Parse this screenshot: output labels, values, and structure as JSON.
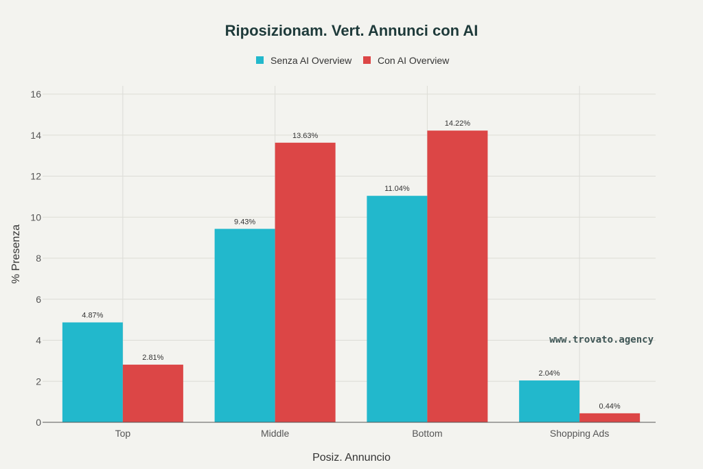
{
  "colors": {
    "background": "#f3f3ef",
    "senza": "#22b8cc",
    "con": "#dc4646",
    "title": "#1e3a3a"
  },
  "watermark": "www.trovato.agency",
  "chart_data": {
    "type": "bar",
    "title": "Riposizionam. Vert. Annunci con AI",
    "xlabel": "Posiz. Annuncio",
    "ylabel": "% Presenza",
    "categories": [
      "Top",
      "Middle",
      "Bottom",
      "Shopping Ads"
    ],
    "series": [
      {
        "name": "Senza AI Overview",
        "color": "#22b8cc",
        "values": [
          4.87,
          9.43,
          11.04,
          2.04
        ],
        "labels": [
          "4.87%",
          "9.43%",
          "11.04%",
          "2.04%"
        ]
      },
      {
        "name": "Con AI Overview",
        "color": "#dc4646",
        "values": [
          2.81,
          13.63,
          14.22,
          0.44
        ],
        "labels": [
          "2.81%",
          "13.63%",
          "14.22%",
          "0.44%"
        ]
      }
    ],
    "ylim": [
      0,
      16
    ],
    "yticks": [
      0,
      2,
      4,
      6,
      8,
      10,
      12,
      14,
      16
    ],
    "ytick_labels": [
      "0",
      "2",
      "4",
      "6",
      "8",
      "10",
      "12",
      "14",
      "16"
    ],
    "grid": true,
    "legend": "top-center"
  }
}
